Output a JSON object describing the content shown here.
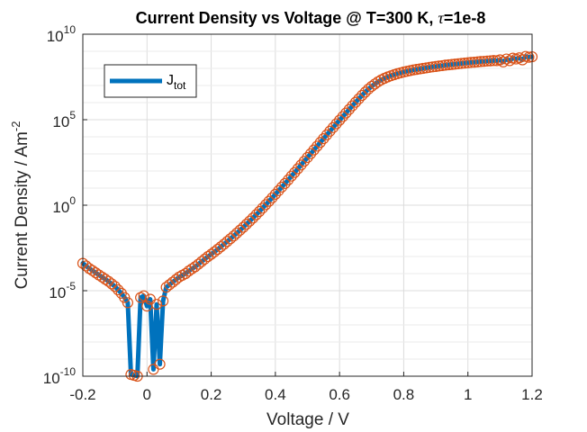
{
  "chart_data": {
    "type": "line",
    "title": "Current Density vs Voltage @ T=300 K, ",
    "title_symbol": "τ",
    "title_suffix": "=1e-8",
    "xlabel": "Voltage  / V",
    "ylabel_main": "Current Density  / Am",
    "ylabel_sup": "-2",
    "xlim": [
      -0.2,
      1.2
    ],
    "ylim_log10": [
      -10,
      10
    ],
    "y_scale": "log",
    "grid": true,
    "legend_position": "top-left",
    "x_ticks": [
      "-0.2",
      "0",
      "0.2",
      "0.4",
      "0.6",
      "0.8",
      "1",
      "1.2"
    ],
    "x_tick_values": [
      -0.2,
      0,
      0.2,
      0.4,
      0.6,
      0.8,
      1.0,
      1.2
    ],
    "y_ticks": [
      {
        "exp": -10,
        "base": "10",
        "sup": "-10"
      },
      {
        "exp": -5,
        "base": "10",
        "sup": "-5"
      },
      {
        "exp": 0,
        "base": "10",
        "sup": "0"
      },
      {
        "exp": 5,
        "base": "10",
        "sup": "5"
      },
      {
        "exp": 10,
        "base": "10",
        "sup": "10"
      }
    ],
    "series": [
      {
        "name": "J",
        "name_sub": "tot",
        "line_color": "#0072BD",
        "marker_color": "#D95319",
        "x": [
          -0.2,
          -0.19,
          -0.18,
          -0.17,
          -0.16,
          -0.15,
          -0.14,
          -0.13,
          -0.12,
          -0.11,
          -0.1,
          -0.09,
          -0.08,
          -0.07,
          -0.06,
          -0.05,
          -0.04,
          -0.03,
          -0.02,
          -0.01,
          0.0,
          0.01,
          0.02,
          0.03,
          0.04,
          0.05,
          0.06,
          0.07,
          0.08,
          0.09,
          0.1,
          0.11,
          0.12,
          0.13,
          0.14,
          0.15,
          0.16,
          0.17,
          0.18,
          0.19,
          0.2,
          0.21,
          0.22,
          0.23,
          0.24,
          0.25,
          0.26,
          0.27,
          0.28,
          0.29,
          0.3,
          0.31,
          0.32,
          0.33,
          0.34,
          0.35,
          0.36,
          0.37,
          0.38,
          0.39,
          0.4,
          0.41,
          0.42,
          0.43,
          0.44,
          0.45,
          0.46,
          0.47,
          0.48,
          0.49,
          0.5,
          0.51,
          0.52,
          0.53,
          0.54,
          0.55,
          0.56,
          0.57,
          0.58,
          0.59,
          0.6,
          0.61,
          0.62,
          0.63,
          0.64,
          0.65,
          0.66,
          0.67,
          0.68,
          0.69,
          0.7,
          0.71,
          0.72,
          0.73,
          0.74,
          0.75,
          0.76,
          0.77,
          0.78,
          0.79,
          0.8,
          0.81,
          0.82,
          0.83,
          0.84,
          0.85,
          0.86,
          0.87,
          0.88,
          0.89,
          0.9,
          0.91,
          0.92,
          0.93,
          0.94,
          0.95,
          0.96,
          0.97,
          0.98,
          0.99,
          1.0,
          1.01,
          1.02,
          1.03,
          1.04,
          1.05,
          1.06,
          1.07,
          1.08,
          1.09,
          1.1,
          1.11,
          1.12,
          1.13,
          1.14,
          1.15,
          1.16,
          1.17,
          1.18,
          1.19,
          1.2
        ],
        "log10_y": [
          -3.4,
          -3.55,
          -3.7,
          -3.82,
          -3.95,
          -4.08,
          -4.2,
          -4.33,
          -4.45,
          -4.6,
          -4.75,
          -4.95,
          -5.15,
          -5.4,
          -5.7,
          -9.9,
          -9.95,
          -10.0,
          -5.4,
          -5.3,
          -5.9,
          -5.5,
          -9.6,
          -5.8,
          -9.3,
          -5.6,
          -4.8,
          -4.65,
          -4.5,
          -4.35,
          -4.2,
          -4.1,
          -4.0,
          -3.85,
          -3.72,
          -3.6,
          -3.45,
          -3.3,
          -3.15,
          -3.0,
          -2.87,
          -2.73,
          -2.58,
          -2.43,
          -2.28,
          -2.12,
          -1.96,
          -1.8,
          -1.63,
          -1.46,
          -1.29,
          -1.11,
          -0.93,
          -0.75,
          -0.56,
          -0.37,
          -0.17,
          0.03,
          0.23,
          0.43,
          0.64,
          0.85,
          1.06,
          1.27,
          1.48,
          1.7,
          1.91,
          2.13,
          2.35,
          2.57,
          2.79,
          3.01,
          3.23,
          3.45,
          3.67,
          3.89,
          4.11,
          4.33,
          4.54,
          4.76,
          4.97,
          5.18,
          5.39,
          5.6,
          5.81,
          6.02,
          6.22,
          6.42,
          6.61,
          6.79,
          6.95,
          7.09,
          7.22,
          7.33,
          7.42,
          7.5,
          7.57,
          7.63,
          7.69,
          7.74,
          7.79,
          7.83,
          7.87,
          7.91,
          7.94,
          7.97,
          8.0,
          8.03,
          8.06,
          8.09,
          8.11,
          8.14,
          8.16,
          8.19,
          8.21,
          8.23,
          8.25,
          8.27,
          8.29,
          8.31,
          8.33,
          8.35,
          8.36,
          8.38,
          8.4,
          8.41,
          8.43,
          8.44,
          8.46,
          8.45,
          8.5,
          8.38,
          8.55,
          8.45,
          8.6,
          8.55,
          8.62,
          8.5,
          8.7,
          8.65,
          8.68
        ]
      }
    ]
  }
}
